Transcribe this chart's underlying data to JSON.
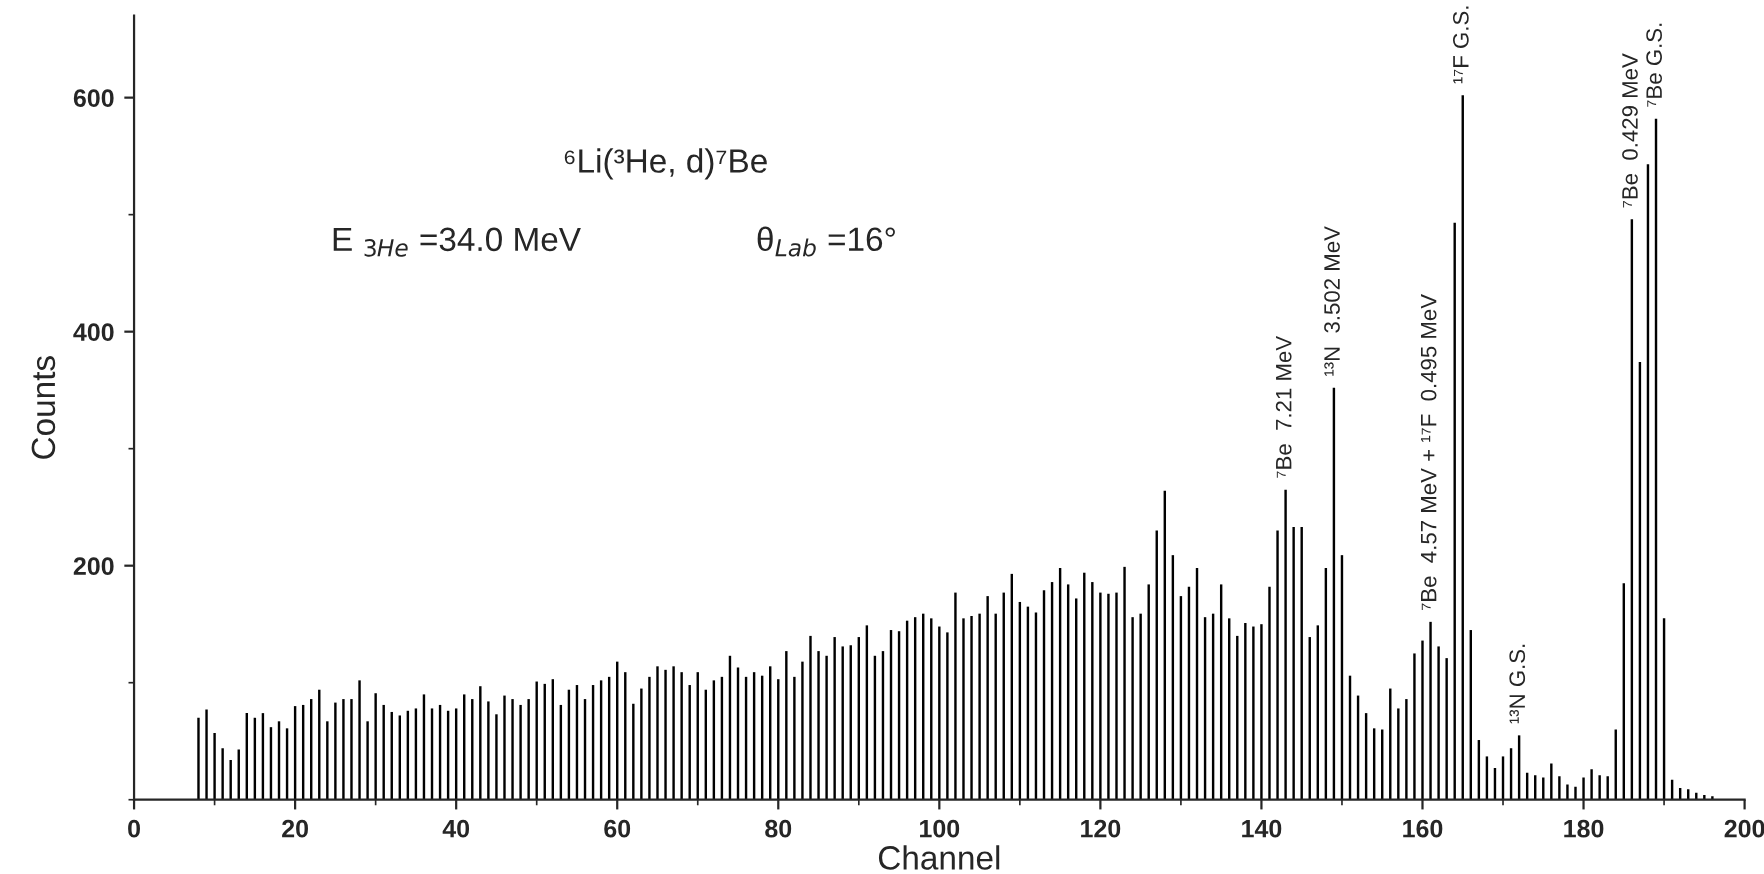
{
  "chart_data": {
    "type": "bar",
    "title": "⁶Li(³He, d)⁷Be",
    "xlabel": "Channel",
    "ylabel": "Counts",
    "x": [
      8,
      9,
      10,
      11,
      12,
      13,
      14,
      15,
      16,
      17,
      18,
      19,
      20,
      21,
      22,
      23,
      24,
      25,
      26,
      27,
      28,
      29,
      30,
      31,
      32,
      33,
      34,
      35,
      36,
      37,
      38,
      39,
      40,
      41,
      42,
      43,
      44,
      45,
      46,
      47,
      48,
      49,
      50,
      51,
      52,
      53,
      54,
      55,
      56,
      57,
      58,
      59,
      60,
      61,
      62,
      63,
      64,
      65,
      66,
      67,
      68,
      69,
      70,
      71,
      72,
      73,
      74,
      75,
      76,
      77,
      78,
      79,
      80,
      81,
      82,
      83,
      84,
      85,
      86,
      87,
      88,
      89,
      90,
      91,
      92,
      93,
      94,
      95,
      96,
      97,
      98,
      99,
      100,
      101,
      102,
      103,
      104,
      105,
      106,
      107,
      108,
      109,
      110,
      111,
      112,
      113,
      114,
      115,
      116,
      117,
      118,
      119,
      120,
      121,
      122,
      123,
      124,
      125,
      126,
      127,
      128,
      129,
      130,
      131,
      132,
      133,
      134,
      135,
      136,
      137,
      138,
      139,
      140,
      141,
      142,
      143,
      144,
      145,
      146,
      147,
      148,
      149,
      150,
      151,
      152,
      153,
      154,
      155,
      156,
      157,
      158,
      159,
      160,
      161,
      162,
      163,
      164,
      165,
      166,
      167,
      168,
      169,
      170,
      171,
      172,
      173,
      174,
      175,
      176,
      177,
      178,
      179,
      180,
      181,
      182,
      183,
      184,
      185,
      186,
      187,
      188,
      189,
      190,
      191,
      192,
      193,
      194,
      195,
      196
    ],
    "series": [
      {
        "color": "#000000",
        "values": [
          70,
          77,
          57,
          44,
          34,
          43,
          74,
          70,
          74,
          62,
          67,
          61,
          80,
          81,
          86,
          94,
          67,
          83,
          86,
          86,
          102,
          67,
          91,
          81,
          75,
          72,
          76,
          78,
          90,
          78,
          81,
          76,
          78,
          90,
          86,
          97,
          84,
          73,
          89,
          86,
          81,
          86,
          101,
          99,
          103,
          81,
          94,
          98,
          86,
          98,
          102,
          105,
          118,
          109,
          82,
          95,
          105,
          114,
          111,
          114,
          109,
          98,
          109,
          94,
          102,
          105,
          123,
          113,
          105,
          109,
          106,
          114,
          103,
          127,
          105,
          118,
          140,
          127,
          123,
          139,
          131,
          132,
          139,
          149,
          123,
          127,
          145,
          144,
          153,
          156,
          159,
          155,
          148,
          143,
          177,
          155,
          157,
          159,
          174,
          159,
          177,
          193,
          169,
          165,
          160,
          179,
          186,
          198,
          184,
          172,
          194,
          186,
          177,
          176,
          177,
          199,
          156,
          159,
          184,
          230,
          264,
          209,
          174,
          182,
          198,
          156,
          159,
          184,
          155,
          140,
          151,
          148,
          150,
          182,
          230,
          265,
          233,
          233,
          139,
          149,
          198,
          352,
          209,
          106,
          89,
          74,
          61,
          60,
          95,
          78,
          86,
          125,
          136,
          152,
          131,
          121,
          493,
          602,
          145,
          51,
          37,
          27,
          37,
          44,
          55,
          23,
          21,
          19,
          31,
          20,
          13,
          11,
          19,
          26,
          21,
          20,
          60,
          185,
          496,
          374,
          543,
          582,
          155,
          17,
          10,
          9,
          6,
          4,
          3
        ]
      }
    ],
    "xlim": [
      0,
      200
    ],
    "ylim": [
      0,
      670
    ],
    "xticks": [
      0,
      {
        "value": 10,
        "label": null
      },
      20,
      {
        "value": 30,
        "label": null
      },
      40,
      {
        "value": 50,
        "label": null
      },
      60,
      {
        "value": 70,
        "label": null
      },
      80,
      {
        "value": 90,
        "label": null
      },
      100,
      {
        "value": 110,
        "label": null
      },
      120,
      {
        "value": 130,
        "label": null
      },
      140,
      {
        "value": 150,
        "label": null
      },
      160,
      {
        "value": 170,
        "label": null
      },
      180,
      {
        "value": 190,
        "label": null
      },
      200
    ],
    "yticks": [
      {
        "value": 0,
        "label": null
      },
      {
        "value": 100,
        "label": null
      },
      200,
      {
        "value": 300,
        "label": null
      },
      400,
      {
        "value": 500,
        "label": null
      },
      600
    ],
    "grid": false,
    "annotations": [
      "E $_{3He}$ =34.0 MeV",
      "θ$_{Lab}$ =16°",
      {
        "text": "⁷Be  7.21 MeV",
        "x": 143,
        "y": 265
      },
      {
        "text": "¹³N  3.502 MeV",
        "x": 149,
        "y": 352
      },
      {
        "text": "⁷Be  4.57 MeV + ¹⁷F  0.495 MeV",
        "x": 161,
        "y": 152
      },
      {
        "text": "¹⁷F G.S.",
        "x": 165,
        "y": 602
      },
      {
        "text": "¹³N G.S.",
        "x": 172,
        "y": 55
      },
      {
        "text": "⁷Be  0.429 MeV",
        "x": 186,
        "y": 496
      },
      {
        "text": "⁷Be G.S.",
        "x": 189,
        "y": 582
      }
    ]
  }
}
